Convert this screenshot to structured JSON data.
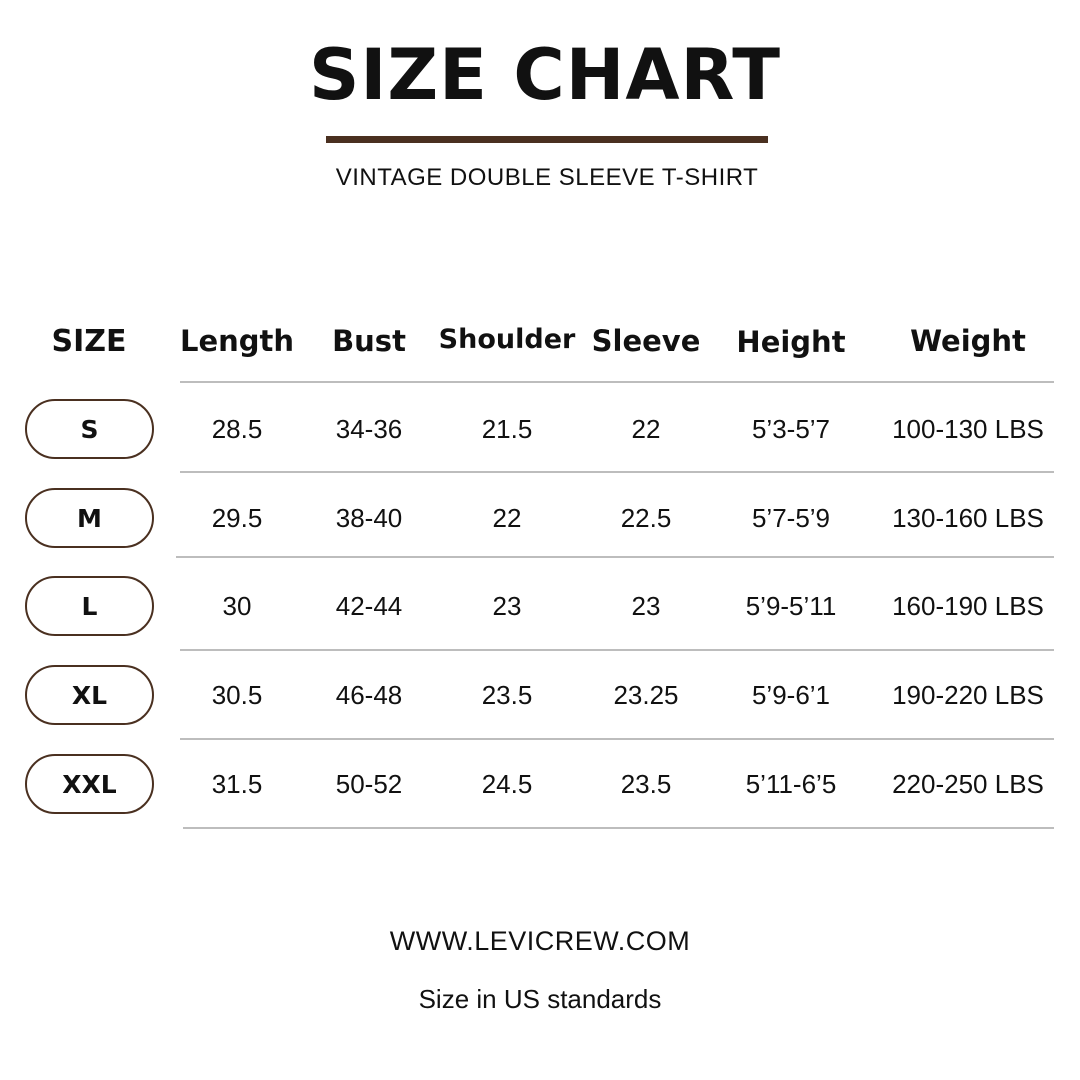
{
  "title": "SIZE CHART",
  "subtitle": "VINTAGE DOUBLE SLEEVE T-SHIRT",
  "accent_color": "#4a3020",
  "table": {
    "headers": [
      "SIZE",
      "Length",
      "Bust",
      "Shoulder",
      "Sleeve",
      "Height",
      "Weight"
    ],
    "rows": [
      [
        "S",
        "28.5",
        "34-36",
        "21.5",
        "22",
        "5’3-5’7",
        "100-130 LBS"
      ],
      [
        "M",
        "29.5",
        "38-40",
        "22",
        "22.5",
        "5’7-5’9",
        "130-160 LBS"
      ],
      [
        "L",
        "30",
        "42-44",
        "23",
        "23",
        "5’9-5’11",
        "160-190 LBS"
      ],
      [
        "XL",
        "30.5",
        "46-48",
        "23.5",
        "23.25",
        "5’9-6’1",
        "190-220 LBS"
      ],
      [
        "XXL",
        "31.5",
        "50-52",
        "24.5",
        "23.5",
        "5’11-6’5",
        "220-250 LBS"
      ]
    ]
  },
  "footer": {
    "url": "WWW.LEVICREW.COM",
    "note": "Size in US standards"
  }
}
